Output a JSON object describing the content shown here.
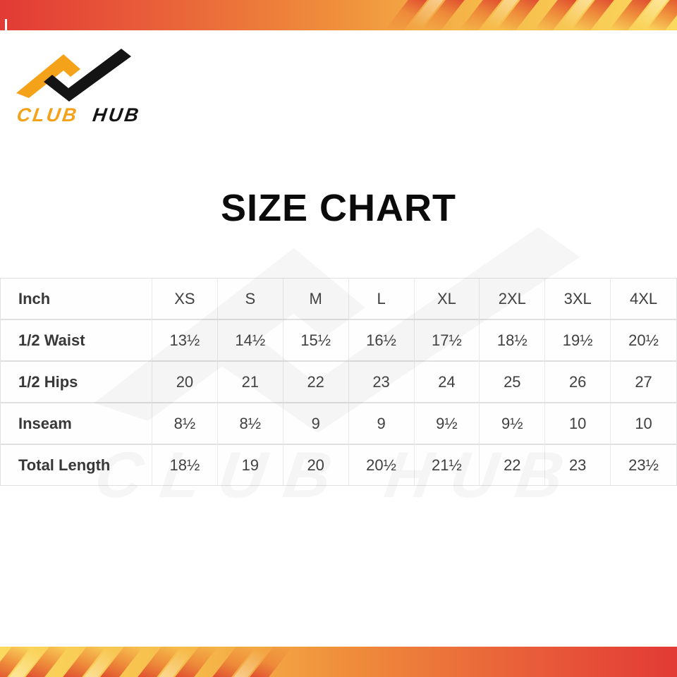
{
  "brand": {
    "word1": "CLUB",
    "word2": "HUB"
  },
  "title": "SIZE CHART",
  "watermark": {
    "text": "CLUB HUB"
  },
  "table": {
    "unit_label": "Inch",
    "columns": [
      "XS",
      "S",
      "M",
      "L",
      "XL",
      "2XL",
      "3XL",
      "4XL"
    ],
    "rows": [
      {
        "label": "1/2 Waist",
        "values": [
          "13½",
          "14½",
          "15½",
          "16½",
          "17½",
          "18½",
          "19½",
          "20½"
        ]
      },
      {
        "label": "1/2 Hips",
        "values": [
          "20",
          "21",
          "22",
          "23",
          "24",
          "25",
          "26",
          "27"
        ]
      },
      {
        "label": "Inseam",
        "values": [
          "8½",
          "8½",
          "9",
          "9",
          "9½",
          "9½",
          "10",
          "10"
        ]
      },
      {
        "label": "Total Length",
        "values": [
          "18½",
          "19",
          "20",
          "20½",
          "21½",
          "22",
          "23",
          "23½"
        ]
      }
    ]
  },
  "chart_data": {
    "type": "table",
    "title": "SIZE CHART",
    "columns": [
      "Inch",
      "XS",
      "S",
      "M",
      "L",
      "XL",
      "2XL",
      "3XL",
      "4XL"
    ],
    "rows": [
      [
        "1/2 Waist",
        "13½",
        "14½",
        "15½",
        "16½",
        "17½",
        "18½",
        "19½",
        "20½"
      ],
      [
        "1/2 Hips",
        "20",
        "21",
        "22",
        "23",
        "24",
        "25",
        "26",
        "27"
      ],
      [
        "Inseam",
        "8½",
        "8½",
        "9",
        "9",
        "9½",
        "9½",
        "10",
        "10"
      ],
      [
        "Total Length",
        "18½",
        "19",
        "20",
        "20½",
        "21½",
        "22",
        "23",
        "23½"
      ]
    ]
  },
  "colors": {
    "band_red": "#e23a35",
    "band_orange": "#ef8c3b",
    "band_yellow": "#fbd95e",
    "stripe_red": "#dd452e",
    "logo_orange": "#f5a21b",
    "logo_black": "#141414",
    "table_text": "#3f3f3f",
    "table_border": "#e0e0e0"
  }
}
